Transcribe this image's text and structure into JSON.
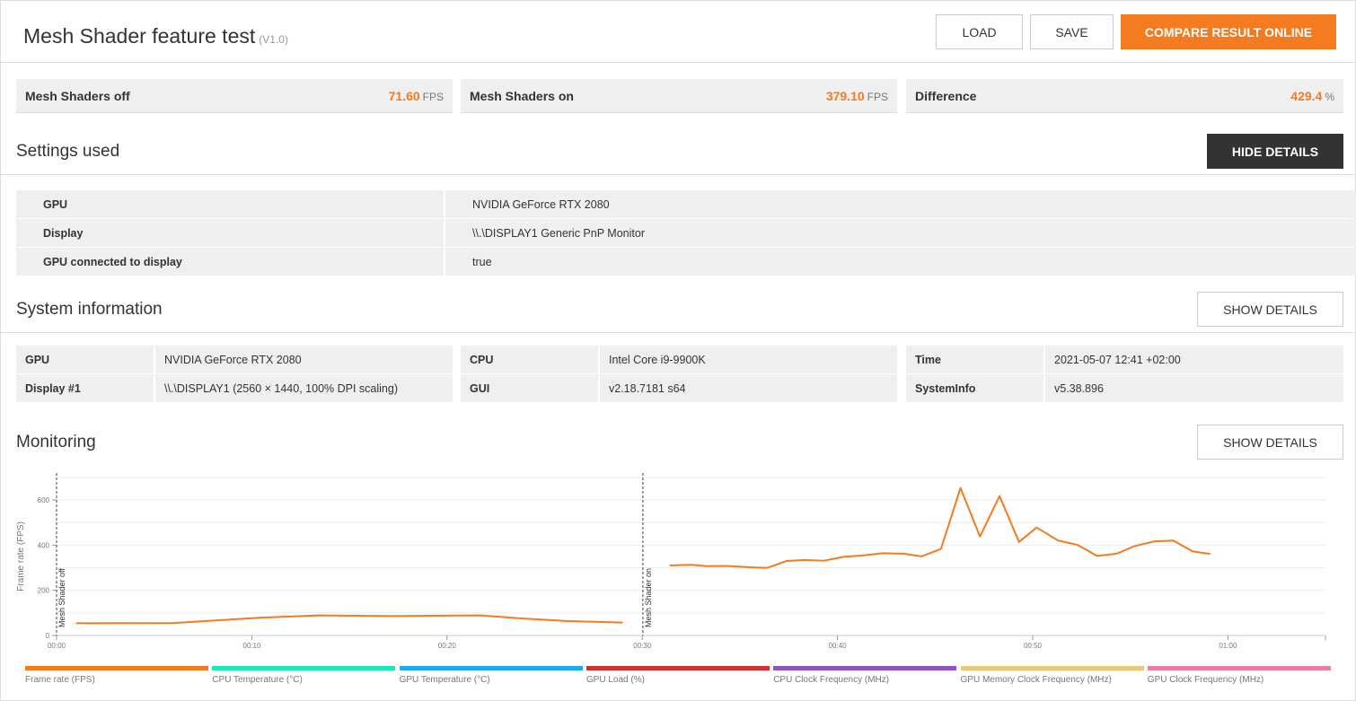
{
  "header": {
    "title": "Mesh Shader feature test",
    "version": "(V1.0)",
    "load": "LOAD",
    "save": "SAVE",
    "compare": "COMPARE RESULT ONLINE"
  },
  "results": [
    {
      "label": "Mesh Shaders off",
      "value": "71.60",
      "unit": "FPS"
    },
    {
      "label": "Mesh Shaders on",
      "value": "379.10",
      "unit": "FPS"
    },
    {
      "label": "Difference",
      "value": "429.4",
      "unit": "%"
    }
  ],
  "settings": {
    "title": "Settings used",
    "button": "HIDE DETAILS",
    "rows": [
      {
        "label": "GPU",
        "value": "NVIDIA GeForce RTX 2080"
      },
      {
        "label": "Display",
        "value": "\\\\.\\DISPLAY1 Generic PnP Monitor"
      },
      {
        "label": "GPU connected to display",
        "value": "true"
      }
    ]
  },
  "system": {
    "title": "System information",
    "button": "SHOW DETAILS",
    "rows": [
      [
        {
          "label": "GPU",
          "value": "NVIDIA GeForce RTX 2080"
        },
        {
          "label": "CPU",
          "value": "Intel Core i9-9900K"
        },
        {
          "label": "Time",
          "value": "2021-05-07 12:41 +02:00"
        }
      ],
      [
        {
          "label": "Display #1",
          "value": "\\\\.\\DISPLAY1 (2560 × 1440, 100% DPI scaling)"
        },
        {
          "label": "GUI",
          "value": "v2.18.7181 s64"
        },
        {
          "label": "SystemInfo",
          "value": "v5.38.896"
        }
      ]
    ]
  },
  "monitoring": {
    "title": "Monitoring",
    "button": "SHOW DETAILS"
  },
  "chart_data": {
    "type": "line",
    "ylabel": "Frame rate (FPS)",
    "ylim": [
      0,
      700
    ],
    "xlim_seconds": [
      0,
      65
    ],
    "yticks": [
      "0",
      "200",
      "400",
      "600"
    ],
    "xticks": [
      "00:00",
      "00:10",
      "00:20",
      "00:30",
      "00:40",
      "00:50",
      "01:00"
    ],
    "markers": [
      {
        "label": "Mesh Shader off",
        "t": "00:00"
      },
      {
        "label": "Mesh Shader on",
        "t": "00:30"
      }
    ],
    "color": "#f47b20",
    "segments": [
      [
        [
          "00:01",
          54
        ],
        [
          "00:06",
          55
        ],
        [
          "00:10.5",
          79
        ],
        [
          "00:13.4",
          89
        ],
        [
          "00:17.2",
          86
        ],
        [
          "00:21.7",
          89
        ],
        [
          "00:23.9",
          75
        ],
        [
          "00:26.1",
          64
        ],
        [
          "00:29",
          57
        ]
      ],
      [
        [
          "00:31.4",
          310
        ],
        [
          "00:32.5",
          313
        ],
        [
          "00:33.3",
          307
        ],
        [
          "00:34.3",
          308
        ],
        [
          "00:35.3",
          303
        ],
        [
          "00:36.4",
          299
        ],
        [
          "00:37.4",
          330
        ],
        [
          "00:38.3",
          334
        ],
        [
          "00:39.3",
          331
        ],
        [
          "00:40.3",
          348
        ],
        [
          "00:41.3",
          354
        ],
        [
          "00:42.3",
          364
        ],
        [
          "00:43.4",
          362
        ],
        [
          "00:44.3",
          350
        ],
        [
          "00:45.3",
          383
        ],
        [
          "00:46.3",
          653
        ],
        [
          "00:47.3",
          438
        ],
        [
          "00:48.3",
          617
        ],
        [
          "00:49.3",
          414
        ],
        [
          "00:50.2",
          478
        ],
        [
          "00:51.3",
          420
        ],
        [
          "00:52.3",
          401
        ],
        [
          "00:53.3",
          352
        ],
        [
          "00:54.3",
          362
        ],
        [
          "00:55.2",
          395
        ],
        [
          "00:56.2",
          416
        ],
        [
          "00:57.2",
          420
        ],
        [
          "00:58.2",
          372
        ],
        [
          "00:59.1",
          361
        ]
      ]
    ]
  },
  "legend": [
    {
      "label": "Frame rate (FPS)",
      "color": "#f47b20"
    },
    {
      "label": "CPU Temperature (°C)",
      "color": "#1de9b6"
    },
    {
      "label": "GPU Temperature (°C)",
      "color": "#1aaeef"
    },
    {
      "label": "GPU Load (%)",
      "color": "#d0302f"
    },
    {
      "label": "CPU Clock Frequency (MHz)",
      "color": "#8e55c9"
    },
    {
      "label": "GPU Memory Clock Frequency (MHz)",
      "color": "#e8c97c"
    },
    {
      "label": "GPU Clock Frequency (MHz)",
      "color": "#e87ea1"
    }
  ]
}
